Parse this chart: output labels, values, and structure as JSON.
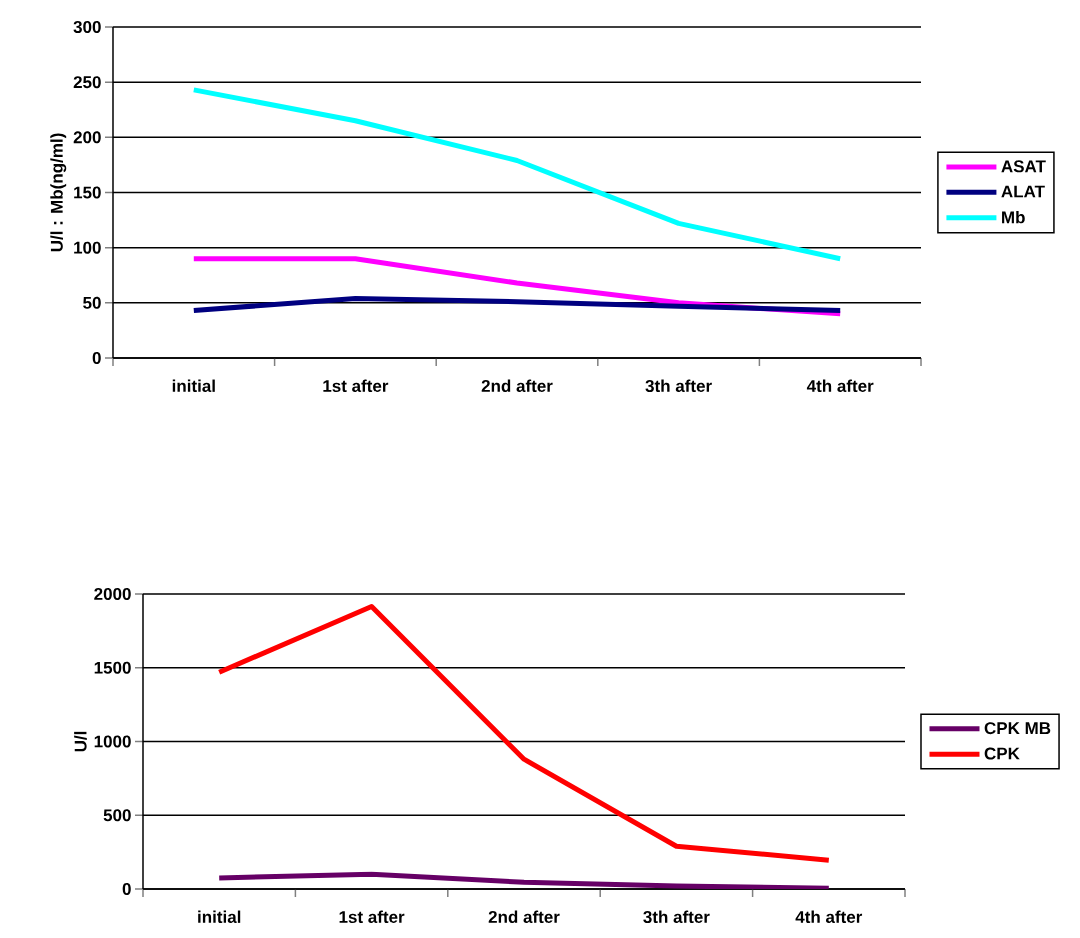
{
  "chart_data": [
    {
      "type": "line",
      "ylabel": "U/l : Mb(ng/ml)",
      "categories": [
        "initial",
        "1st after",
        "2nd after",
        "3th after",
        "4th after"
      ],
      "series": [
        {
          "name": "ASAT",
          "color": "#ff00ff",
          "values": [
            90,
            90,
            68,
            50,
            40
          ]
        },
        {
          "name": "ALAT",
          "color": "#000080",
          "values": [
            43,
            54,
            51,
            47,
            43
          ]
        },
        {
          "name": "Mb",
          "color": "#00ffff",
          "values": [
            243,
            215,
            179,
            122,
            90
          ]
        }
      ],
      "ylim": [
        0,
        300
      ],
      "yticks": [
        0,
        50,
        100,
        150,
        200,
        250,
        300
      ],
      "grid": "y",
      "legend": "right"
    },
    {
      "type": "line",
      "ylabel": "U/l",
      "categories": [
        "initial",
        "1st after",
        "2nd after",
        "3th after",
        "4th after"
      ],
      "series": [
        {
          "name": "CPK MB",
          "color": "#660066",
          "values": [
            75,
            100,
            45,
            20,
            5
          ]
        },
        {
          "name": "CPK",
          "color": "#ff0000",
          "values": [
            1470,
            1915,
            880,
            290,
            195
          ]
        }
      ],
      "ylim": [
        0,
        2000
      ],
      "yticks": [
        0,
        500,
        1000,
        1500,
        2000
      ],
      "grid": "y",
      "legend": "right"
    }
  ]
}
